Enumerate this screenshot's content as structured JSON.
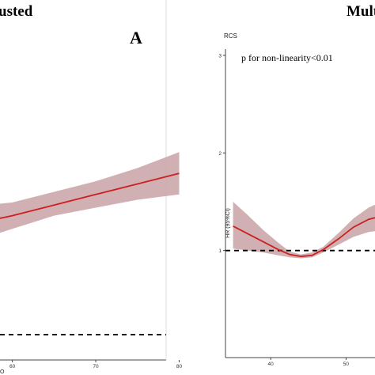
{
  "chart_data": [
    {
      "panel": "left",
      "type": "line",
      "header": "usted",
      "panel_letter": "A",
      "xlabel_fragment": "O",
      "x_ticks": [
        60,
        70,
        80
      ],
      "xlim": [
        57,
        81
      ],
      "ylim": [
        0.2,
        1.6
      ],
      "reference_line_y": 0.55,
      "colors": {
        "line": "#cc1f1f",
        "band": "#c9a2a6",
        "reference": "#000000",
        "axis": "#444444"
      },
      "series": [
        {
          "x": [
            57,
            60,
            65,
            70,
            75,
            80
          ],
          "y": [
            0.98,
            1.0,
            1.04,
            1.08,
            1.12,
            1.16
          ],
          "lower": [
            0.92,
            0.95,
            1.0,
            1.03,
            1.06,
            1.08
          ],
          "upper": [
            1.04,
            1.05,
            1.09,
            1.13,
            1.18,
            1.24
          ]
        }
      ]
    },
    {
      "panel": "right",
      "type": "line",
      "header": "Mult",
      "title": "RCS",
      "annotation": "p for non-linearity<0.01",
      "ylabel": "HR (95%CI)",
      "x_ticks": [
        40,
        50
      ],
      "y_ticks": [
        1,
        2,
        3
      ],
      "xlim": [
        32,
        55
      ],
      "ylim": [
        0,
        3
      ],
      "reference_line_y": 1,
      "colors": {
        "line": "#cc1f1f",
        "band": "#c9a2a6",
        "reference": "#000000",
        "axis": "#444444"
      },
      "series": [
        {
          "x": [
            35,
            37,
            39,
            41,
            42.5,
            44,
            45.5,
            47,
            49,
            51,
            53,
            55
          ],
          "y": [
            1.25,
            1.17,
            1.09,
            1.01,
            0.96,
            0.94,
            0.95,
            1.01,
            1.12,
            1.24,
            1.32,
            1.36
          ],
          "lower": [
            1.02,
            1.0,
            0.98,
            0.95,
            0.93,
            0.92,
            0.93,
            0.98,
            1.06,
            1.14,
            1.19,
            1.21
          ],
          "upper": [
            1.5,
            1.36,
            1.21,
            1.08,
            0.99,
            0.96,
            0.98,
            1.04,
            1.18,
            1.33,
            1.44,
            1.51
          ]
        }
      ]
    }
  ]
}
